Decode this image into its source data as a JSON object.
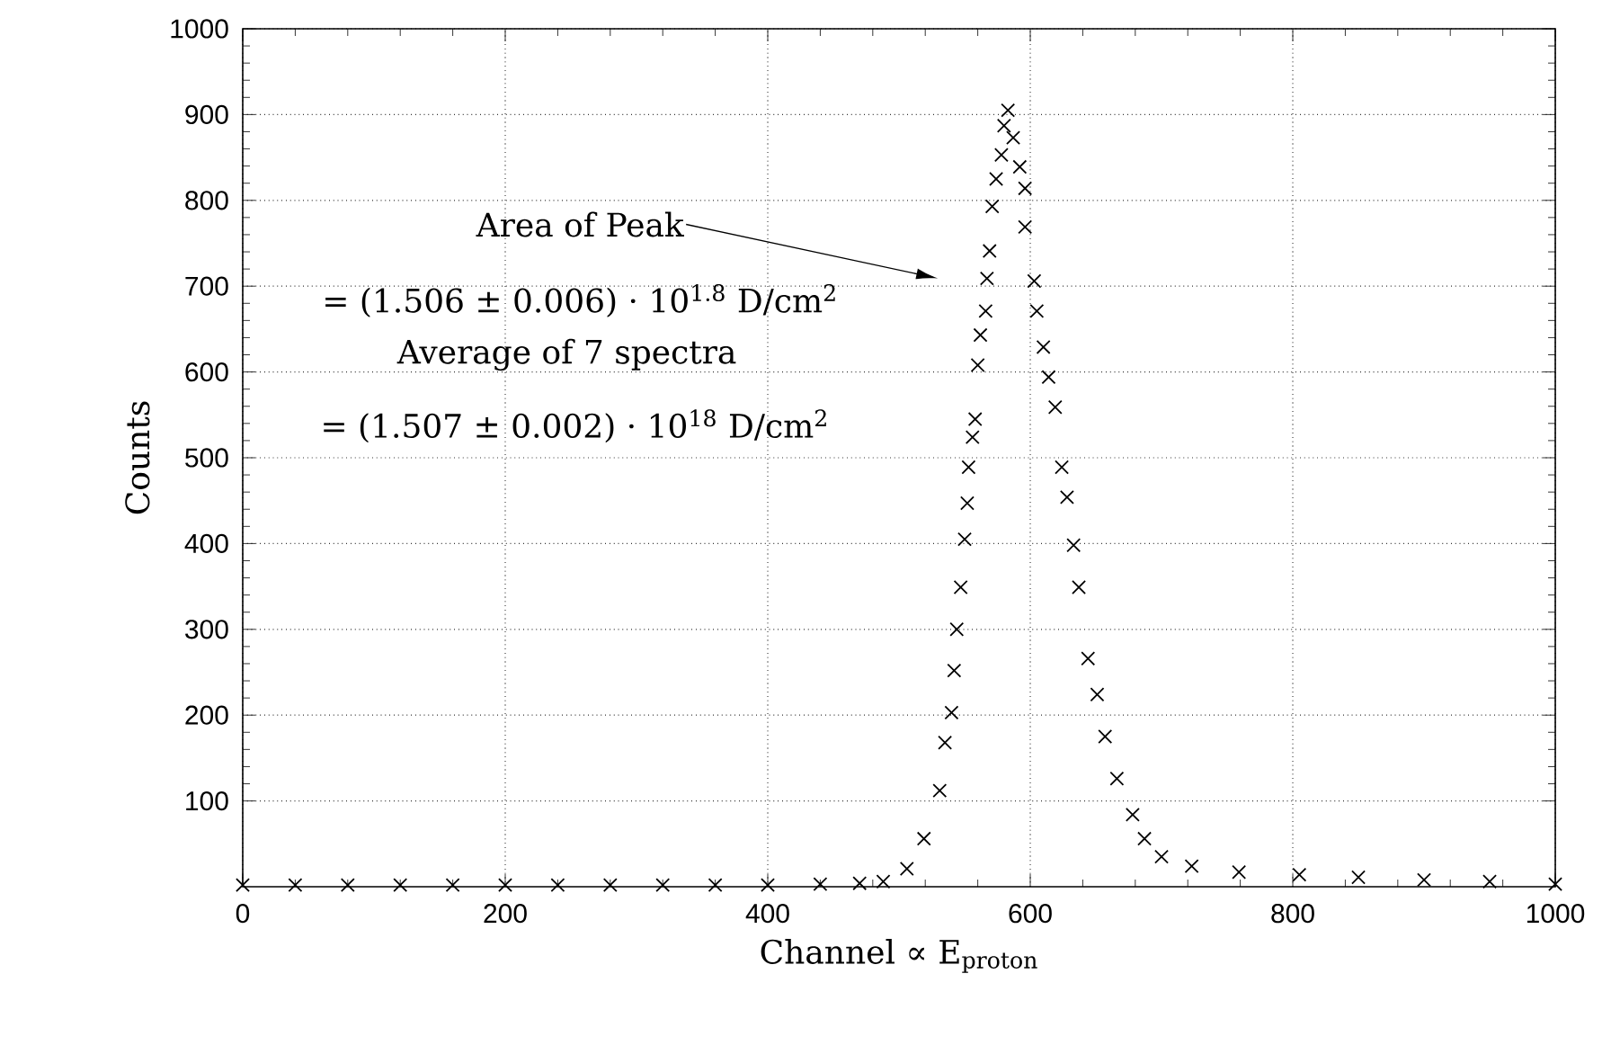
{
  "chart_data": {
    "type": "scatter",
    "xlabel": "Channel ∝ E$_{proton}$",
    "ylabel": "Counts",
    "xlim": [
      0,
      1000
    ],
    "ylim": [
      0,
      1000
    ],
    "xticks": [
      0,
      200,
      400,
      600,
      800,
      1000
    ],
    "yticks": [
      100,
      200,
      300,
      400,
      500,
      600,
      700,
      800,
      900,
      1000
    ],
    "grid": true,
    "marker": "cross",
    "annotations": [
      "Area of Peak",
      "= (1.506 ± 0.006) · 10$^{1.8}$ D/cm$^{2}$",
      "Average of 7 spectra",
      "= (1.507 ± 0.002) · 10$^{18}$ D/cm$^{2}$"
    ],
    "series": [
      {
        "color": "#000000",
        "x": [
          0,
          40,
          80,
          120,
          160,
          200,
          240,
          280,
          320,
          360,
          400,
          440,
          470,
          488,
          506,
          519,
          531,
          535,
          540,
          542,
          544,
          547,
          550,
          552,
          553,
          556,
          558,
          560,
          562,
          566,
          567,
          569,
          571,
          574,
          578,
          580,
          583,
          587,
          592,
          596,
          596,
          603,
          605,
          610,
          614,
          619,
          624,
          628,
          633,
          637,
          644,
          651,
          657,
          666,
          678,
          687,
          700,
          723,
          759,
          805,
          850,
          900,
          950,
          1000
        ],
        "values": [
          2,
          2,
          2,
          2,
          2,
          2,
          2,
          2,
          2,
          2,
          2,
          3,
          4,
          6,
          21,
          56,
          112,
          168,
          203,
          252,
          300,
          349,
          405,
          447,
          489,
          524,
          545,
          608,
          643,
          671,
          709,
          741,
          793,
          825,
          853,
          887,
          905,
          873,
          839,
          814,
          769,
          706,
          671,
          629,
          594,
          559,
          489,
          454,
          398,
          349,
          266,
          224,
          175,
          126,
          84,
          56,
          35,
          24,
          17,
          14,
          11,
          8,
          6,
          3
        ]
      }
    ]
  }
}
